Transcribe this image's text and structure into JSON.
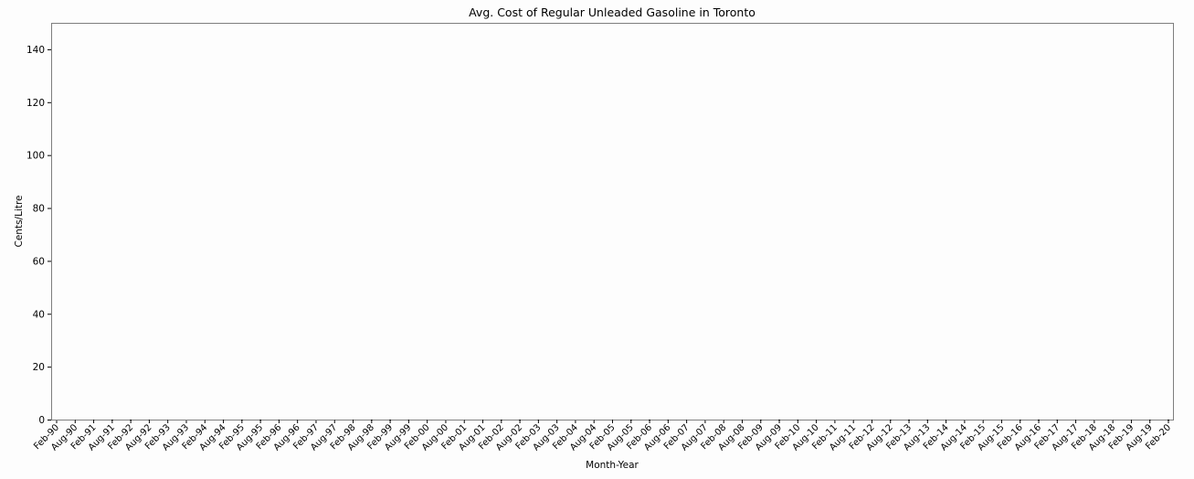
{
  "chart_data": {
    "type": "line",
    "title": "Avg. Cost of Regular Unleaded Gasoline in Toronto",
    "xlabel": "Month-Year",
    "ylabel": "Cents/Litre",
    "ylim": [
      0,
      150
    ],
    "yticks": [
      0,
      20,
      40,
      60,
      80,
      100,
      120,
      140
    ],
    "grid": false,
    "categories": [
      "Feb-90",
      "Aug-90",
      "Feb-91",
      "Aug-91",
      "Feb-92",
      "Aug-92",
      "Feb-93",
      "Aug-93",
      "Feb-94",
      "Aug-94",
      "Feb-95",
      "Aug-95",
      "Feb-96",
      "Aug-96",
      "Feb-97",
      "Aug-97",
      "Feb-98",
      "Aug-98",
      "Feb-99",
      "Aug-99",
      "Feb-00",
      "Aug-00",
      "Feb-01",
      "Aug-01",
      "Feb-02",
      "Aug-02",
      "Feb-03",
      "Aug-03",
      "Feb-04",
      "Aug-04",
      "Feb-05",
      "Aug-05",
      "Feb-06",
      "Aug-06",
      "Feb-07",
      "Aug-07",
      "Feb-08",
      "Aug-08",
      "Feb-09",
      "Aug-09",
      "Feb-10",
      "Aug-10",
      "Feb-11",
      "Aug-11",
      "Feb-12",
      "Aug-12",
      "Feb-13",
      "Aug-13",
      "Feb-14",
      "Aug-14",
      "Feb-15",
      "Aug-15",
      "Feb-16",
      "Aug-16",
      "Feb-17",
      "Aug-17",
      "Feb-18",
      "Aug-18",
      "Feb-19",
      "Aug-19",
      "Feb-20"
    ],
    "series": []
  }
}
